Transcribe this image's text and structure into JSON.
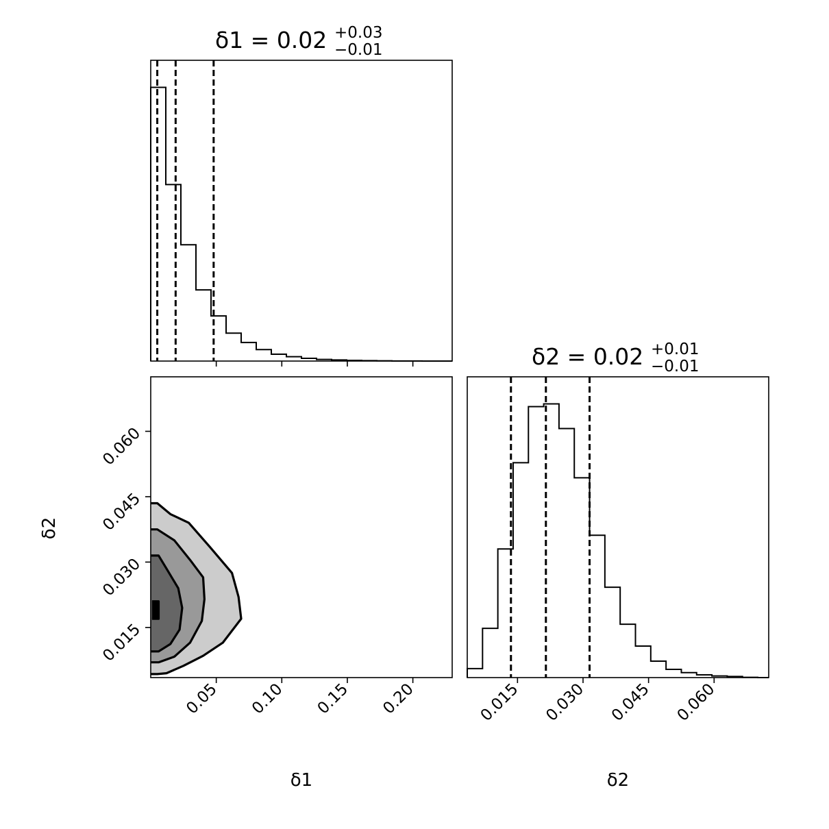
{
  "figure": {
    "type": "corner-plot",
    "background": "#ffffff"
  },
  "chart_data": [
    {
      "panel": "marginal-delta1",
      "type": "histogram-step",
      "title": {
        "main": "δ1 = 0.02",
        "sup": "+0.03",
        "sub": "−0.01"
      },
      "xlim": [
        0.0,
        0.23
      ],
      "x_ticks": [
        0.05,
        0.1,
        0.15,
        0.2
      ],
      "bin_edges": [
        0.0,
        0.0115,
        0.023,
        0.0345,
        0.046,
        0.0575,
        0.069,
        0.0805,
        0.092,
        0.1035,
        0.115,
        0.1265,
        0.138,
        0.1495,
        0.161,
        0.1725,
        0.184,
        0.1955,
        0.207,
        0.2185,
        0.23
      ],
      "counts": [
        1.0,
        0.645,
        0.425,
        0.26,
        0.165,
        0.102,
        0.068,
        0.042,
        0.025,
        0.016,
        0.01,
        0.006,
        0.004,
        0.0025,
        0.0015,
        0.0008,
        0.0004,
        0.0002,
        0.0001,
        0.0
      ],
      "quantile_lines": [
        0.005,
        0.019,
        0.048
      ],
      "line_color": "#000000"
    },
    {
      "panel": "joint-delta1-delta2",
      "type": "contour",
      "xlim": [
        0.0,
        0.23
      ],
      "ylim": [
        0.0035,
        0.0725
      ],
      "x_ticks": [
        0.05,
        0.1,
        0.15,
        0.2
      ],
      "x_tick_labels": [
        "0.05",
        "0.10",
        "0.15",
        "0.20"
      ],
      "y_ticks": [
        0.015,
        0.03,
        0.045,
        0.06
      ],
      "y_tick_labels": [
        "0.015",
        "0.030",
        "0.045",
        "0.060"
      ],
      "xlabel": "δ1",
      "ylabel": "δ2",
      "levels": [
        {
          "fill": "#cccccc",
          "points": [
            [
              0.0,
              0.0435
            ],
            [
              0.005,
              0.0435
            ],
            [
              0.015,
              0.041
            ],
            [
              0.029,
              0.039
            ],
            [
              0.045,
              0.0335
            ],
            [
              0.062,
              0.0275
            ],
            [
              0.067,
              0.022
            ],
            [
              0.069,
              0.017
            ],
            [
              0.055,
              0.0115
            ],
            [
              0.04,
              0.0085
            ],
            [
              0.025,
              0.0062
            ],
            [
              0.012,
              0.0045
            ],
            [
              0.005,
              0.0043
            ],
            [
              0.0,
              0.0043
            ]
          ]
        },
        {
          "fill": "#999999",
          "points": [
            [
              0.0,
              0.0375
            ],
            [
              0.005,
              0.0375
            ],
            [
              0.018,
              0.035
            ],
            [
              0.03,
              0.0305
            ],
            [
              0.04,
              0.0265
            ],
            [
              0.041,
              0.0215
            ],
            [
              0.039,
              0.0165
            ],
            [
              0.03,
              0.0115
            ],
            [
              0.018,
              0.0083
            ],
            [
              0.006,
              0.007
            ],
            [
              0.0,
              0.007
            ]
          ]
        },
        {
          "fill": "#666666",
          "points": [
            [
              0.0,
              0.0315
            ],
            [
              0.006,
              0.0315
            ],
            [
              0.013,
              0.028
            ],
            [
              0.021,
              0.024
            ],
            [
              0.024,
              0.0195
            ],
            [
              0.022,
              0.0145
            ],
            [
              0.015,
              0.0112
            ],
            [
              0.006,
              0.0095
            ],
            [
              0.0,
              0.0095
            ]
          ]
        },
        {
          "fill": "#000000",
          "points": [
            [
              0.001,
              0.021
            ],
            [
              0.006,
              0.021
            ],
            [
              0.006,
              0.017
            ],
            [
              0.001,
              0.017
            ]
          ]
        }
      ],
      "line_color": "#000000"
    },
    {
      "panel": "marginal-delta2",
      "type": "histogram-step",
      "title": {
        "main": "δ2 = 0.02",
        "sup": "+0.01",
        "sub": "−0.01"
      },
      "xlim": [
        0.0035,
        0.0725
      ],
      "x_ticks": [
        0.015,
        0.03,
        0.045,
        0.06
      ],
      "x_tick_labels": [
        "0.015",
        "0.030",
        "0.045",
        "0.060"
      ],
      "xlabel": "δ2",
      "bin_edges": [
        0.0035,
        0.007,
        0.0105,
        0.014,
        0.0175,
        0.021,
        0.0245,
        0.028,
        0.0315,
        0.035,
        0.0385,
        0.042,
        0.0455,
        0.049,
        0.0525,
        0.056,
        0.0595,
        0.063,
        0.0665,
        0.07,
        0.0725
      ],
      "counts": [
        0.033,
        0.18,
        0.47,
        0.785,
        0.99,
        1.0,
        0.91,
        0.73,
        0.52,
        0.33,
        0.195,
        0.115,
        0.06,
        0.03,
        0.018,
        0.01,
        0.006,
        0.004,
        0.001,
        0.0
      ],
      "quantile_lines": [
        0.0135,
        0.0215,
        0.0315
      ],
      "line_color": "#000000"
    }
  ]
}
